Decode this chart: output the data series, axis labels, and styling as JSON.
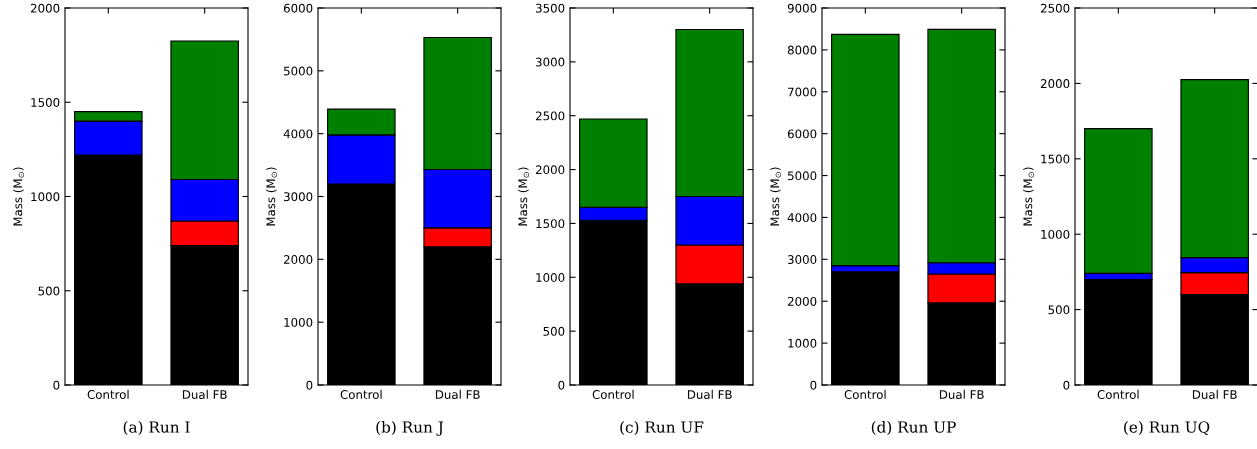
{
  "chart_data": [
    {
      "type": "bar",
      "stacked": true,
      "title": "(a) Run I",
      "ylabel": "Mass (M$_{⊙}$)",
      "categories": [
        "Control",
        "Dual FB"
      ],
      "ylim": [
        0,
        2000
      ],
      "yticks": [
        0,
        500,
        1000,
        1500,
        2000
      ],
      "grid": false,
      "series": [
        {
          "color": "#000000",
          "values": [
            1220,
            740
          ]
        },
        {
          "color": "#ff0000",
          "values": [
            null,
            130
          ]
        },
        {
          "color": "#0000ff",
          "values": [
            180,
            220
          ]
        },
        {
          "color": "#008000",
          "values": [
            50,
            735
          ]
        }
      ]
    },
    {
      "type": "bar",
      "stacked": true,
      "title": "(b) Run J",
      "ylabel": "Mass (M$_{⊙}$)",
      "categories": [
        "Control",
        "Dual FB"
      ],
      "ylim": [
        0,
        6000
      ],
      "yticks": [
        0,
        1000,
        2000,
        3000,
        4000,
        5000,
        6000
      ],
      "grid": false,
      "series": [
        {
          "color": "#000000",
          "values": [
            3200,
            2200
          ]
        },
        {
          "color": "#ff0000",
          "values": [
            null,
            300
          ]
        },
        {
          "color": "#0000ff",
          "values": [
            780,
            930
          ]
        },
        {
          "color": "#008000",
          "values": [
            410,
            2100
          ]
        }
      ]
    },
    {
      "type": "bar",
      "stacked": true,
      "title": "(c) Run UF",
      "ylabel": "Mass (M$_{⊙}$)",
      "categories": [
        "Control",
        "Dual FB"
      ],
      "ylim": [
        0,
        3500
      ],
      "yticks": [
        0,
        500,
        1000,
        1500,
        2000,
        2500,
        3000,
        3500
      ],
      "grid": false,
      "series": [
        {
          "color": "#000000",
          "values": [
            1530,
            940
          ]
        },
        {
          "color": "#ff0000",
          "values": [
            null,
            360
          ]
        },
        {
          "color": "#0000ff",
          "values": [
            120,
            450
          ]
        },
        {
          "color": "#008000",
          "values": [
            820,
            1550
          ]
        }
      ]
    },
    {
      "type": "bar",
      "stacked": true,
      "title": "(d) Run UP",
      "ylabel": "Mass (M$_{⊙}$)",
      "categories": [
        "Control",
        "Dual FB"
      ],
      "ylim": [
        0,
        9000
      ],
      "yticks": [
        0,
        1000,
        2000,
        3000,
        4000,
        5000,
        6000,
        7000,
        8000,
        9000
      ],
      "grid": false,
      "series": [
        {
          "color": "#000000",
          "values": [
            2700,
            1960
          ]
        },
        {
          "color": "#ff0000",
          "values": [
            null,
            690
          ]
        },
        {
          "color": "#0000ff",
          "values": [
            150,
            270
          ]
        },
        {
          "color": "#008000",
          "values": [
            5520,
            5570
          ]
        }
      ]
    },
    {
      "type": "bar",
      "stacked": true,
      "title": "(e) Run UQ",
      "ylabel": "Mass (M$_{⊙}$)",
      "categories": [
        "Control",
        "Dual FB"
      ],
      "ylim": [
        0,
        2500
      ],
      "yticks": [
        0,
        500,
        1000,
        1500,
        2000,
        2500
      ],
      "grid": false,
      "series": [
        {
          "color": "#000000",
          "values": [
            700,
            600
          ]
        },
        {
          "color": "#ff0000",
          "values": [
            null,
            145
          ]
        },
        {
          "color": "#0000ff",
          "values": [
            40,
            100
          ]
        },
        {
          "color": "#008000",
          "values": [
            960,
            1180
          ]
        }
      ]
    }
  ]
}
